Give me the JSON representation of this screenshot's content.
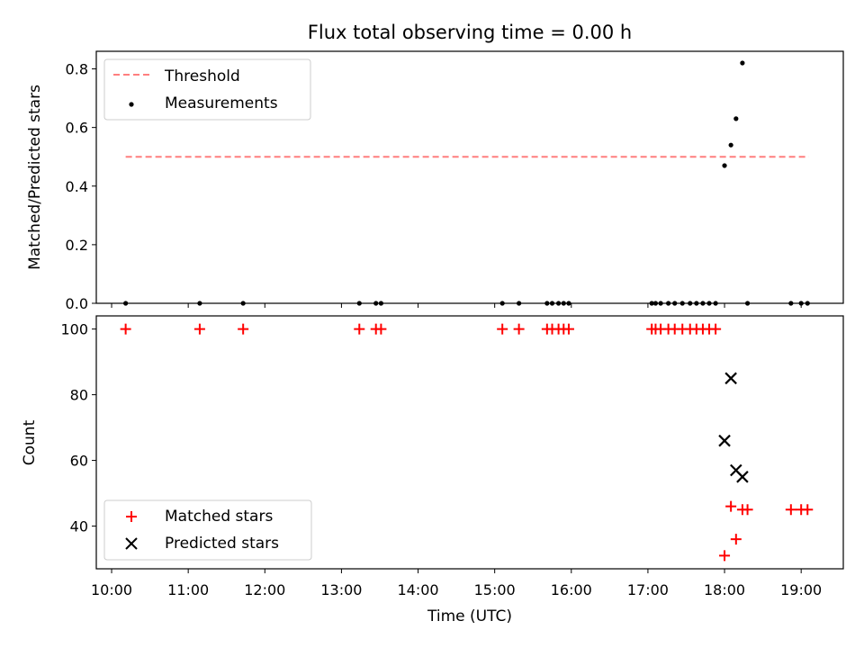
{
  "chart_data": {
    "title": "Flux total observing time = 0.00 h",
    "xlabel": "Time (UTC)",
    "x_ticks": [
      "10:00",
      "11:00",
      "12:00",
      "13:00",
      "14:00",
      "15:00",
      "16:00",
      "17:00",
      "18:00",
      "19:00"
    ],
    "x_range": [
      "09:48",
      "19:33"
    ],
    "panels": [
      {
        "type": "scatter",
        "ylabel": "Matched/Predicted stars",
        "ylim": [
          0,
          0.86
        ],
        "y_ticks": [
          "0.0",
          "0.2",
          "0.4",
          "0.6",
          "0.8"
        ],
        "legend": {
          "placement": "upper left",
          "entries": [
            "Threshold",
            "Measurements"
          ]
        },
        "series": [
          {
            "name": "Threshold",
            "style": "dashed-line",
            "color": "#ff7f7f",
            "x": [
              "10:11",
              "19:06"
            ],
            "y": [
              0.5,
              0.5
            ]
          },
          {
            "name": "Measurements",
            "style": "dot",
            "color": "#000000",
            "x": [
              "10:11",
              "11:09",
              "11:43",
              "13:14",
              "13:27",
              "13:31",
              "15:06",
              "15:19",
              "15:41",
              "15:45",
              "15:50",
              "15:54",
              "15:58",
              "17:03",
              "17:06",
              "17:10",
              "17:16",
              "17:21",
              "17:27",
              "17:33",
              "17:38",
              "17:43",
              "17:48",
              "17:53",
              "18:00",
              "18:05",
              "18:09",
              "18:14",
              "18:18",
              "18:52",
              "19:00",
              "19:05"
            ],
            "y": [
              0,
              0,
              0,
              0,
              0,
              0,
              0,
              0,
              0,
              0,
              0,
              0,
              0,
              0,
              0,
              0,
              0,
              0,
              0,
              0,
              0,
              0,
              0,
              0,
              0.47,
              0.54,
              0.63,
              0.82,
              0,
              0,
              0,
              0
            ]
          }
        ]
      },
      {
        "type": "scatter",
        "ylabel": "Count",
        "ylim": [
          27,
          104
        ],
        "y_ticks": [
          "40",
          "60",
          "80",
          "100"
        ],
        "legend": {
          "placement": "lower left",
          "entries": [
            "Matched stars",
            "Predicted stars"
          ]
        },
        "series": [
          {
            "name": "Matched stars",
            "marker": "plus",
            "color": "#ff0000",
            "x": [
              "10:11",
              "11:09",
              "11:43",
              "13:14",
              "13:27",
              "13:31",
              "15:06",
              "15:19",
              "15:41",
              "15:45",
              "15:50",
              "15:54",
              "15:58",
              "17:03",
              "17:06",
              "17:10",
              "17:16",
              "17:21",
              "17:27",
              "17:33",
              "17:38",
              "17:43",
              "17:48",
              "17:53",
              "18:00",
              "18:05",
              "18:09",
              "18:14",
              "18:18",
              "18:52",
              "19:00",
              "19:05"
            ],
            "y": [
              100,
              100,
              100,
              100,
              100,
              100,
              100,
              100,
              100,
              100,
              100,
              100,
              100,
              100,
              100,
              100,
              100,
              100,
              100,
              100,
              100,
              100,
              100,
              100,
              31,
              46,
              36,
              45,
              45,
              45,
              45,
              45
            ]
          },
          {
            "name": "Predicted stars",
            "marker": "x",
            "color": "#000000",
            "x": [
              "18:00",
              "18:05",
              "18:09",
              "18:14"
            ],
            "y": [
              66,
              85,
              57,
              55
            ]
          }
        ]
      }
    ]
  }
}
